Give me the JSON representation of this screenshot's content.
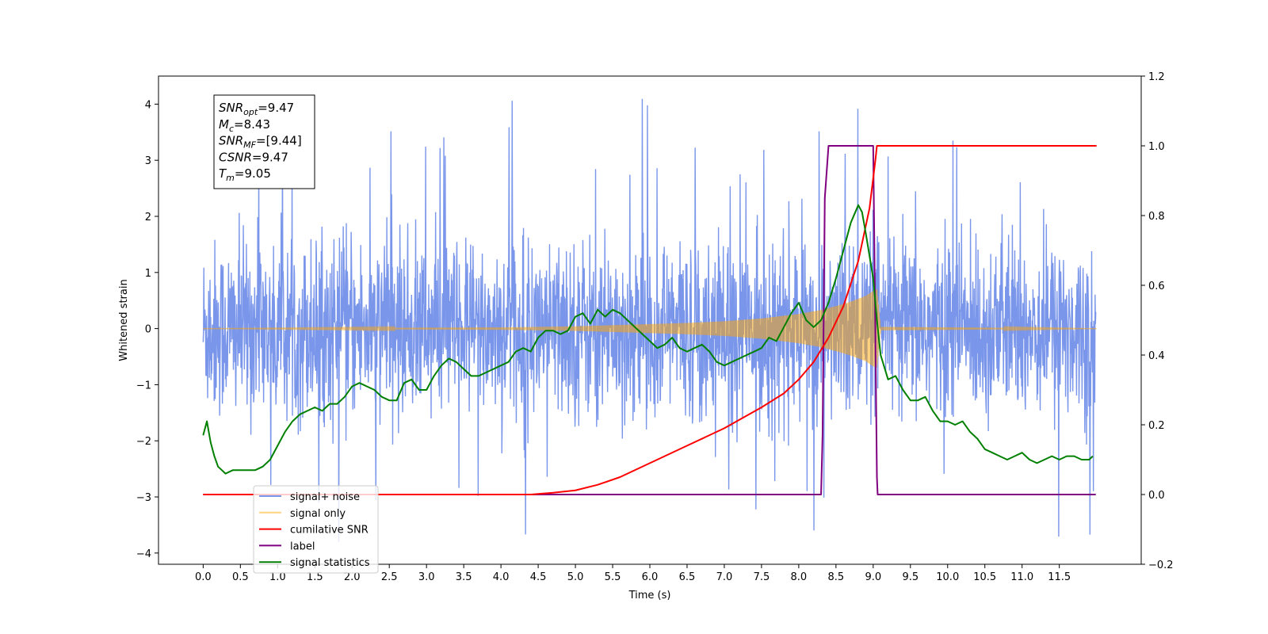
{
  "chart_data": {
    "type": "line",
    "xlabel": "Time (s)",
    "ylabel": "Whitened strain",
    "ylabel_right": "",
    "xlim": [
      -0.6,
      12.6
    ],
    "ylim": [
      -4.2,
      4.5
    ],
    "ylim_right": [
      -0.2,
      1.2
    ],
    "x_ticks": [
      0.0,
      0.5,
      1.0,
      1.5,
      2.0,
      2.5,
      3.0,
      3.5,
      4.0,
      4.5,
      5.0,
      5.5,
      6.0,
      6.5,
      7.0,
      7.5,
      8.0,
      8.5,
      9.0,
      9.5,
      10.0,
      10.5,
      11.0,
      11.5
    ],
    "y_ticks": [
      -4,
      -3,
      -2,
      -1,
      0,
      1,
      2,
      3,
      4
    ],
    "y_ticks_right": [
      -0.2,
      0.0,
      0.2,
      0.4,
      0.6,
      0.8,
      1.0,
      1.2
    ],
    "grid": false,
    "legend_position": "lower-left",
    "annotation": {
      "lines": [
        {
          "base": "SNR",
          "sub": "opt",
          "value": "=9.47"
        },
        {
          "base": "M",
          "sub": "c",
          "value": "=8.43"
        },
        {
          "base": "SNR",
          "sub": "MF",
          "value": "=[9.44]"
        },
        {
          "base": "CSNR",
          "sub": "",
          "value": "=9.47"
        },
        {
          "base": "T",
          "sub": "m",
          "value": "=9.05"
        }
      ]
    },
    "series": [
      {
        "name": "signal+ noise",
        "color": "#4169e1",
        "opacity": 0.7,
        "axis": "left",
        "description": "whitened noise, approx. uniform amplitude ~±1.5 with spikes to ±4 over t=0..12 s",
        "noise_envelope": {
          "x_range": [
            0.0,
            11.99
          ],
          "amplitude": 1.5,
          "spike_max": 4.1
        }
      },
      {
        "name": "signal only",
        "color": "#ffa500",
        "opacity": 0.5,
        "axis": "left",
        "description": "chirp growing in amplitude, ending at merger ~9.05 s",
        "x": [
          0.0,
          4.0,
          5.0,
          6.0,
          6.5,
          7.0,
          7.5,
          8.0,
          8.3,
          8.5,
          8.7,
          8.9,
          9.0,
          9.05,
          9.1,
          12.0
        ],
        "amplitude": [
          0.0,
          0.02,
          0.04,
          0.08,
          0.1,
          0.13,
          0.18,
          0.26,
          0.33,
          0.4,
          0.48,
          0.58,
          0.67,
          0.7,
          0.03,
          0.0
        ]
      },
      {
        "name": "cumilative SNR",
        "color": "#ff0000",
        "axis": "right",
        "x": [
          0.0,
          4.4,
          4.7,
          5.0,
          5.3,
          5.6,
          6.0,
          6.5,
          7.0,
          7.5,
          7.8,
          8.0,
          8.2,
          8.4,
          8.6,
          8.8,
          8.95,
          9.03,
          9.05,
          12.0
        ],
        "y": [
          0.0,
          0.0,
          0.005,
          0.012,
          0.028,
          0.05,
          0.09,
          0.14,
          0.19,
          0.25,
          0.29,
          0.33,
          0.38,
          0.45,
          0.54,
          0.67,
          0.82,
          0.96,
          1.0,
          1.0
        ]
      },
      {
        "name": "label",
        "color": "#800080",
        "axis": "right",
        "x": [
          0.0,
          8.3,
          8.32,
          8.35,
          8.4,
          9.0,
          9.03,
          9.05,
          9.06,
          11.99
        ],
        "y": [
          0.0,
          0.0,
          0.17,
          0.85,
          1.0,
          1.0,
          0.45,
          0.05,
          0.0,
          0.0
        ]
      },
      {
        "name": "signal statistics",
        "color": "#008000",
        "axis": "right",
        "x": [
          0.0,
          0.05,
          0.1,
          0.15,
          0.2,
          0.25,
          0.3,
          0.4,
          0.5,
          0.6,
          0.7,
          0.8,
          0.9,
          1.0,
          1.1,
          1.2,
          1.3,
          1.4,
          1.5,
          1.6,
          1.7,
          1.8,
          1.9,
          2.0,
          2.1,
          2.2,
          2.3,
          2.4,
          2.5,
          2.6,
          2.7,
          2.8,
          2.9,
          3.0,
          3.1,
          3.2,
          3.3,
          3.4,
          3.5,
          3.6,
          3.7,
          3.8,
          3.9,
          4.0,
          4.1,
          4.2,
          4.3,
          4.4,
          4.5,
          4.6,
          4.7,
          4.8,
          4.9,
          5.0,
          5.1,
          5.2,
          5.3,
          5.4,
          5.5,
          5.6,
          5.7,
          5.8,
          5.9,
          6.0,
          6.1,
          6.2,
          6.3,
          6.4,
          6.5,
          6.6,
          6.7,
          6.8,
          6.9,
          7.0,
          7.1,
          7.2,
          7.3,
          7.4,
          7.5,
          7.6,
          7.7,
          7.8,
          7.9,
          8.0,
          8.1,
          8.2,
          8.3,
          8.4,
          8.5,
          8.6,
          8.7,
          8.8,
          8.85,
          8.9,
          9.0,
          9.05,
          9.1,
          9.2,
          9.3,
          9.4,
          9.5,
          9.6,
          9.7,
          9.8,
          9.9,
          10.0,
          10.1,
          10.2,
          10.3,
          10.4,
          10.5,
          10.6,
          10.7,
          10.8,
          10.9,
          11.0,
          11.1,
          11.2,
          11.3,
          11.4,
          11.5,
          11.6,
          11.7,
          11.8,
          11.9,
          11.95
        ],
        "y": [
          0.17,
          0.21,
          0.15,
          0.11,
          0.08,
          0.07,
          0.06,
          0.07,
          0.07,
          0.07,
          0.07,
          0.08,
          0.1,
          0.14,
          0.18,
          0.21,
          0.23,
          0.24,
          0.25,
          0.24,
          0.26,
          0.26,
          0.28,
          0.31,
          0.32,
          0.31,
          0.3,
          0.28,
          0.27,
          0.27,
          0.32,
          0.33,
          0.3,
          0.3,
          0.34,
          0.37,
          0.39,
          0.38,
          0.36,
          0.34,
          0.34,
          0.35,
          0.36,
          0.37,
          0.38,
          0.41,
          0.42,
          0.41,
          0.45,
          0.47,
          0.47,
          0.46,
          0.47,
          0.51,
          0.52,
          0.49,
          0.53,
          0.51,
          0.53,
          0.52,
          0.5,
          0.48,
          0.46,
          0.44,
          0.42,
          0.43,
          0.45,
          0.42,
          0.41,
          0.42,
          0.43,
          0.41,
          0.38,
          0.37,
          0.38,
          0.39,
          0.4,
          0.41,
          0.42,
          0.45,
          0.44,
          0.48,
          0.52,
          0.55,
          0.5,
          0.48,
          0.5,
          0.55,
          0.62,
          0.7,
          0.78,
          0.83,
          0.81,
          0.75,
          0.62,
          0.5,
          0.4,
          0.33,
          0.34,
          0.3,
          0.27,
          0.27,
          0.28,
          0.24,
          0.21,
          0.21,
          0.2,
          0.21,
          0.18,
          0.16,
          0.13,
          0.12,
          0.11,
          0.1,
          0.11,
          0.12,
          0.1,
          0.09,
          0.1,
          0.11,
          0.1,
          0.11,
          0.11,
          0.1,
          0.1,
          0.11
        ]
      }
    ]
  }
}
